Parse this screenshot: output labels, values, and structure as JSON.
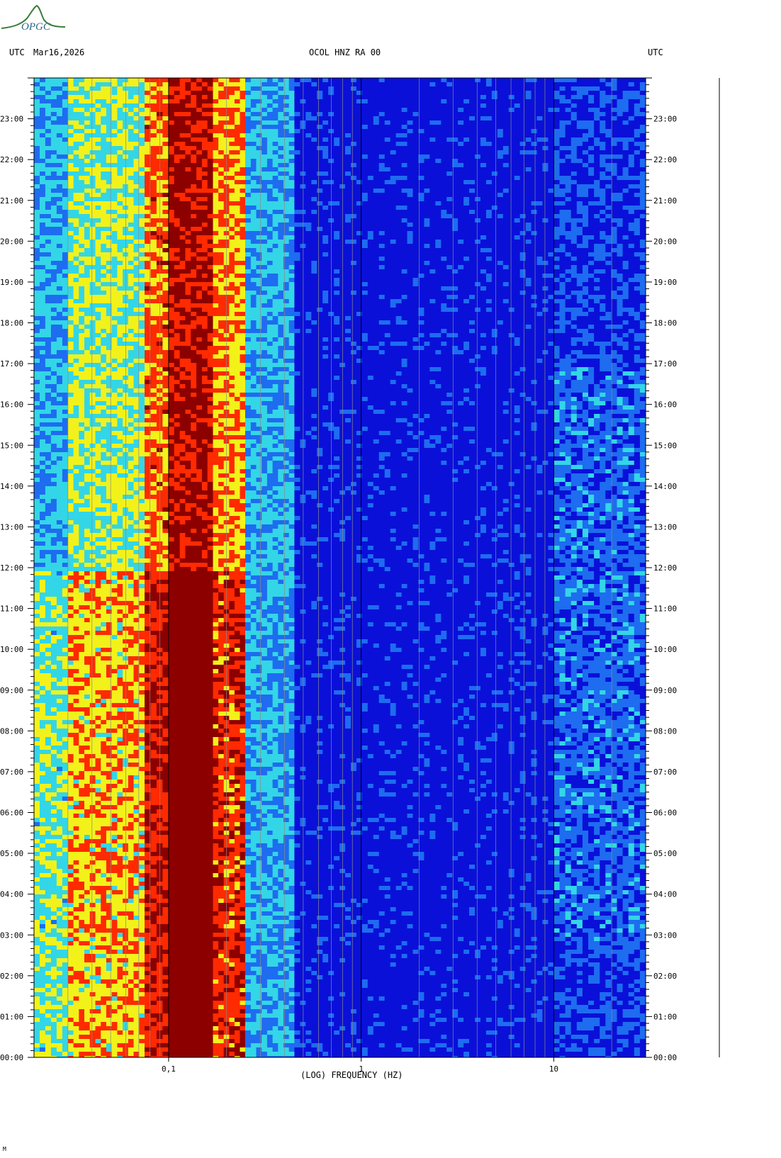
{
  "header": {
    "tz_left": "UTC",
    "date": "Mar16,2026",
    "station": "OCOL HNZ RA 00",
    "tz_right": "UTC"
  },
  "logo_text": "OPGC",
  "footer_mark": "M",
  "chart_data": {
    "type": "heatmap",
    "title": "OCOL HNZ RA 00",
    "xlabel": "(LOG) FREQUENCY (HZ)",
    "x_scale": "log",
    "x_range_hz": [
      0.02,
      30
    ],
    "x_tick_labels": [
      {
        "value": 0.1,
        "label": "0,1"
      },
      {
        "value": 1,
        "label": "1"
      },
      {
        "value": 10,
        "label": "10"
      }
    ],
    "y_range_hours": [
      0,
      24
    ],
    "y_tick_labels": [
      "00:00",
      "01:00",
      "02:00",
      "03:00",
      "04:00",
      "05:00",
      "06:00",
      "07:00",
      "08:00",
      "09:00",
      "10:00",
      "11:00",
      "12:00",
      "13:00",
      "14:00",
      "15:00",
      "16:00",
      "17:00",
      "18:00",
      "19:00",
      "20:00",
      "21:00",
      "22:00",
      "23:00"
    ],
    "colors": {
      "low": "#0a10d8",
      "mid_low": "#1e6cf0",
      "mid": "#33d6e6",
      "mid_high": "#f2f21a",
      "high": "#ff2a00",
      "max": "#8c0000"
    },
    "bands": [
      {
        "f_start_hz": 0.02,
        "f_end_hz": 0.03,
        "level": 0.4
      },
      {
        "f_start_hz": 0.03,
        "f_end_hz": 0.075,
        "level": 0.55
      },
      {
        "f_start_hz": 0.075,
        "f_end_hz": 0.1,
        "level": 0.75
      },
      {
        "f_start_hz": 0.1,
        "f_end_hz": 0.17,
        "level": 0.92
      },
      {
        "f_start_hz": 0.17,
        "f_end_hz": 0.25,
        "level": 0.7
      },
      {
        "f_start_hz": 0.25,
        "f_end_hz": 0.45,
        "level": 0.35
      },
      {
        "f_start_hz": 0.45,
        "f_end_hz": 10,
        "level": 0.05
      },
      {
        "f_start_hz": 10,
        "f_end_hz": 30,
        "level": 0.15
      }
    ]
  }
}
